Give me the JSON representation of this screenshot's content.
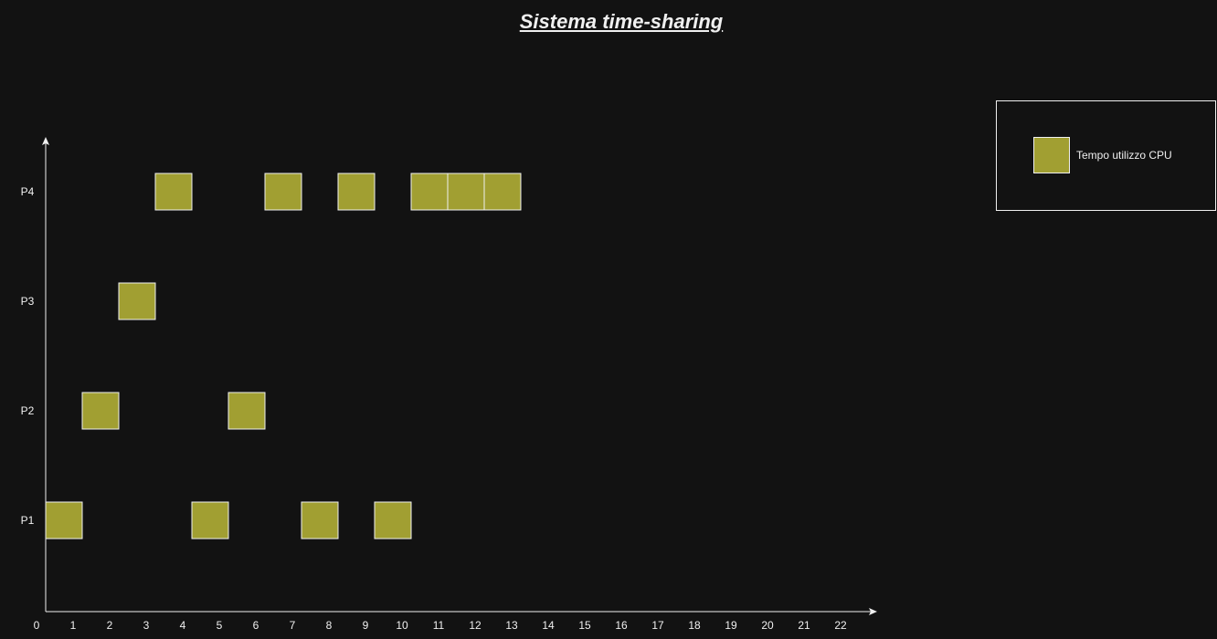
{
  "chart_data": {
    "type": "gantt",
    "title": "Sistema time-sharing",
    "xlabel": "",
    "ylabel": "",
    "x_ticks": [
      "0",
      "1",
      "2",
      "3",
      "4",
      "5",
      "6",
      "7",
      "8",
      "9",
      "10",
      "11",
      "12",
      "13",
      "14",
      "15",
      "16",
      "17",
      "18",
      "19",
      "20",
      "21",
      "22"
    ],
    "categories": [
      "P1",
      "P2",
      "P3",
      "P4"
    ],
    "series": [
      {
        "name": "Tempo utilizzo CPU",
        "color": "#a19f32",
        "slots": [
          {
            "process": "P1",
            "start": 0,
            "end": 1
          },
          {
            "process": "P2",
            "start": 1,
            "end": 2
          },
          {
            "process": "P3",
            "start": 2,
            "end": 3
          },
          {
            "process": "P4",
            "start": 3,
            "end": 4
          },
          {
            "process": "P1",
            "start": 4,
            "end": 5
          },
          {
            "process": "P2",
            "start": 5,
            "end": 6
          },
          {
            "process": "P4",
            "start": 6,
            "end": 7
          },
          {
            "process": "P1",
            "start": 7,
            "end": 8
          },
          {
            "process": "P4",
            "start": 8,
            "end": 9
          },
          {
            "process": "P1",
            "start": 9,
            "end": 10
          },
          {
            "process": "P4",
            "start": 10,
            "end": 11
          },
          {
            "process": "P4",
            "start": 11,
            "end": 12
          },
          {
            "process": "P4",
            "start": 12,
            "end": 13
          }
        ]
      }
    ],
    "legend": {
      "position": "top-right",
      "label": "Tempo utilizzo CPU"
    },
    "grid": false
  },
  "colors": {
    "background": "#121212",
    "foreground": "#f0f0f0",
    "bar": "#a19f32"
  }
}
